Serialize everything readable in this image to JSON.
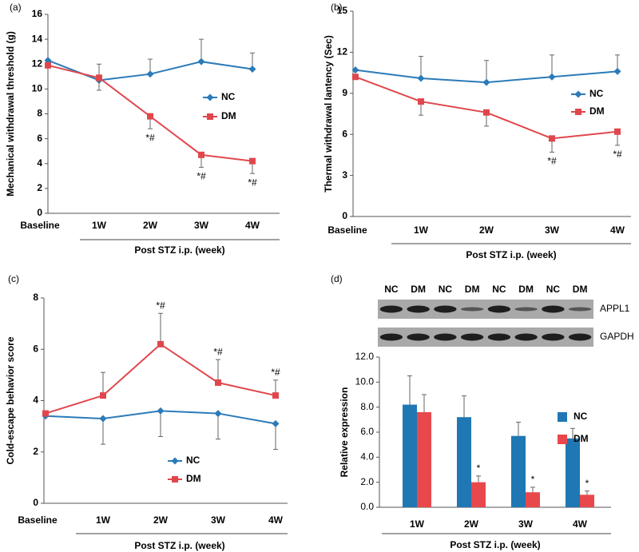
{
  "chart_data": [
    {
      "type": "line",
      "panel": "(a)",
      "y_label": "Mechanical withdrawal threshold (g)",
      "x_label": "Post STZ i.p. (week)",
      "categories": [
        "Baseline",
        "1W",
        "2W",
        "3W",
        "4W"
      ],
      "ylim": [
        0,
        16
      ],
      "yticks": [
        0,
        2,
        4,
        6,
        8,
        10,
        12,
        14,
        16
      ],
      "series": [
        {
          "name": "NC",
          "color": "#2b7bb9",
          "marker": "diamond",
          "error_direction": "up",
          "values": [
            12.3,
            10.7,
            11.2,
            12.2,
            11.6
          ],
          "errors": [
            0,
            1.3,
            1.2,
            1.8,
            1.3
          ]
        },
        {
          "name": "DM",
          "color": "#e0474c",
          "marker": "square",
          "error_direction": "down",
          "values": [
            11.9,
            10.9,
            7.8,
            4.7,
            4.2
          ],
          "errors": [
            0,
            1.0,
            1.0,
            1.0,
            1.0
          ],
          "annotations": [
            null,
            null,
            "*#",
            "*#",
            "*#"
          ]
        }
      ]
    },
    {
      "type": "line",
      "panel": "(b)",
      "y_label": "Thermal withdrawal lantency (Sec)",
      "x_label": "Post STZ i.p. (week)",
      "categories": [
        "Baseline",
        "1W",
        "2W",
        "3W",
        "4W"
      ],
      "ylim": [
        0,
        15
      ],
      "yticks": [
        0,
        3,
        6,
        9,
        12,
        15
      ],
      "series": [
        {
          "name": "NC",
          "color": "#2b7bb9",
          "marker": "diamond",
          "error_direction": "up",
          "values": [
            10.7,
            10.1,
            9.8,
            10.2,
            10.6
          ],
          "errors": [
            0,
            1.6,
            1.6,
            1.6,
            1.2
          ]
        },
        {
          "name": "DM",
          "color": "#e0474c",
          "marker": "square",
          "error_direction": "down",
          "values": [
            10.2,
            8.4,
            7.6,
            5.7,
            6.2
          ],
          "errors": [
            0,
            1.0,
            1.0,
            1.0,
            1.0
          ],
          "annotations": [
            null,
            null,
            null,
            "*#",
            "*#"
          ]
        }
      ]
    },
    {
      "type": "line",
      "panel": "(c)",
      "y_label": "Cold-escape behavior score",
      "x_label": "Post STZ i.p. (week)",
      "categories": [
        "Baseline",
        "1W",
        "2W",
        "3W",
        "4W"
      ],
      "ylim": [
        0,
        8
      ],
      "yticks": [
        0,
        2,
        4,
        6,
        8
      ],
      "series": [
        {
          "name": "NC",
          "color": "#2b7bb9",
          "marker": "diamond",
          "error_direction": "down",
          "values": [
            3.4,
            3.3,
            3.6,
            3.5,
            3.1
          ],
          "errors": [
            0,
            1.0,
            1.0,
            1.0,
            1.0
          ]
        },
        {
          "name": "DM",
          "color": "#e0474c",
          "marker": "square",
          "error_direction": "up",
          "values": [
            3.5,
            4.2,
            6.2,
            4.7,
            4.2
          ],
          "errors": [
            0,
            0.9,
            1.2,
            0.9,
            0.6
          ],
          "annotations": [
            null,
            null,
            "*#",
            "*#",
            "*#"
          ]
        }
      ]
    },
    {
      "type": "bar",
      "panel": "(d)",
      "y_label": "Relative expression",
      "x_label": "Post STZ i.p. (week)",
      "blot": {
        "lanes": [
          "NC",
          "DM",
          "NC",
          "DM",
          "NC",
          "DM",
          "NC",
          "DM"
        ],
        "rows": [
          "APPL1",
          "GAPDH"
        ]
      },
      "categories": [
        "1W",
        "2W",
        "3W",
        "4W"
      ],
      "ylim": [
        0,
        12
      ],
      "yticks": [
        {
          "value": 0,
          "label": "0.0"
        },
        {
          "value": 2,
          "label": "2.0"
        },
        {
          "value": 4,
          "label": "4.0"
        },
        {
          "value": 6,
          "label": "6.0"
        },
        {
          "value": 8,
          "label": "8.0"
        },
        {
          "value": 10,
          "label": "10.0"
        },
        {
          "value": 12,
          "label": "12.0"
        }
      ],
      "series": [
        {
          "name": "NC",
          "color": "#1f77b4",
          "error_direction": "up",
          "values": [
            8.2,
            7.2,
            5.7,
            5.5
          ],
          "errors": [
            2.3,
            1.7,
            1.1,
            0.8
          ]
        },
        {
          "name": "DM",
          "color": "#e8484c",
          "error_direction": "up",
          "values": [
            7.6,
            2.0,
            1.2,
            1.0
          ],
          "errors": [
            1.4,
            0.5,
            0.4,
            0.3
          ],
          "annotations": [
            null,
            "*",
            "*",
            "*"
          ]
        }
      ]
    }
  ]
}
